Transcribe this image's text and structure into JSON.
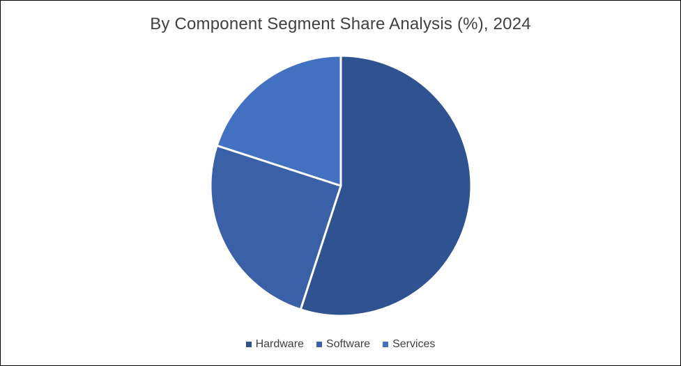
{
  "chart_data": {
    "type": "pie",
    "title": "By Component  Segment Share Analysis (%), 2024",
    "categories": [
      "Hardware",
      "Software",
      "Services"
    ],
    "values": [
      55,
      25,
      20
    ],
    "colors": [
      "#2f5291",
      "#3a60a8",
      "#4371c1"
    ],
    "start_angle_deg": 0,
    "direction": "clockwise",
    "legend_position": "bottom",
    "slice_border_color": "#ffffff"
  }
}
